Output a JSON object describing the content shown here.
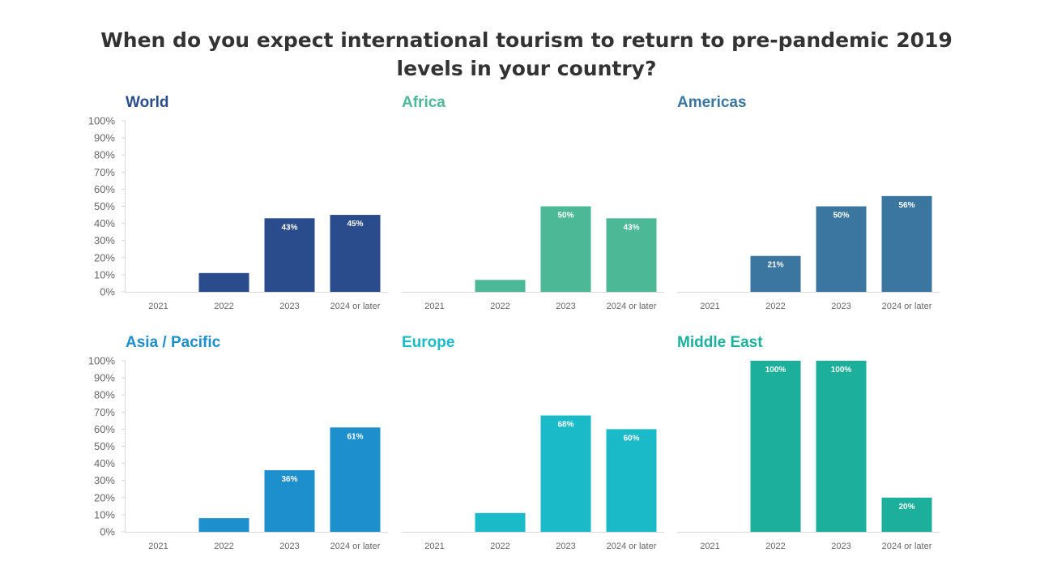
{
  "title": "When do you expect international tourism to return to pre-pandemic 2019 levels in your country?",
  "chart_data": [
    {
      "type": "bar",
      "title": "World",
      "color": "#2b4c8c",
      "categories": [
        "2021",
        "2022",
        "2023",
        "2024 or later"
      ],
      "values": [
        0,
        11,
        43,
        45
      ],
      "value_labels": [
        "",
        "",
        "43%",
        "45%"
      ],
      "ylim": [
        0,
        100
      ],
      "y_ticks": [
        "0%",
        "10%",
        "20%",
        "30%",
        "40%",
        "50%",
        "60%",
        "70%",
        "80%",
        "90%",
        "100%"
      ]
    },
    {
      "type": "bar",
      "title": "Africa",
      "color": "#4db896",
      "categories": [
        "2021",
        "2022",
        "2023",
        "2024 or later"
      ],
      "values": [
        0,
        7,
        50,
        43
      ],
      "value_labels": [
        "",
        "",
        "50%",
        "43%"
      ],
      "ylim": [
        0,
        100
      ],
      "y_ticks": []
    },
    {
      "type": "bar",
      "title": "Americas",
      "color": "#3a76a0",
      "categories": [
        "2021",
        "2022",
        "2023",
        "2024 or later"
      ],
      "values": [
        0,
        21,
        50,
        56
      ],
      "value_labels": [
        "",
        "21%",
        "50%",
        "56%"
      ],
      "ylim": [
        0,
        100
      ],
      "y_ticks": []
    },
    {
      "type": "bar",
      "title": "Asia / Pacific",
      "color": "#1c8fcc",
      "categories": [
        "2021",
        "2022",
        "2023",
        "2024 or later"
      ],
      "values": [
        0,
        8,
        36,
        61
      ],
      "value_labels": [
        "",
        "",
        "36%",
        "61%"
      ],
      "ylim": [
        0,
        100
      ],
      "y_ticks": [
        "0%",
        "10%",
        "20%",
        "30%",
        "40%",
        "50%",
        "60%",
        "70%",
        "80%",
        "90%",
        "100%"
      ]
    },
    {
      "type": "bar",
      "title": "Europe",
      "color": "#1bbac8",
      "categories": [
        "2021",
        "2022",
        "2023",
        "2024 or later"
      ],
      "values": [
        0,
        11,
        68,
        60
      ],
      "value_labels": [
        "",
        "",
        "68%",
        "60%"
      ],
      "ylim": [
        0,
        100
      ],
      "y_ticks": []
    },
    {
      "type": "bar",
      "title": "Middle East",
      "color": "#1cb09c",
      "categories": [
        "2021",
        "2022",
        "2023",
        "2024 or later"
      ],
      "values": [
        0,
        100,
        100,
        20
      ],
      "value_labels": [
        "",
        "100%",
        "100%",
        "20%"
      ],
      "ylim": [
        0,
        100
      ],
      "y_ticks": []
    }
  ]
}
